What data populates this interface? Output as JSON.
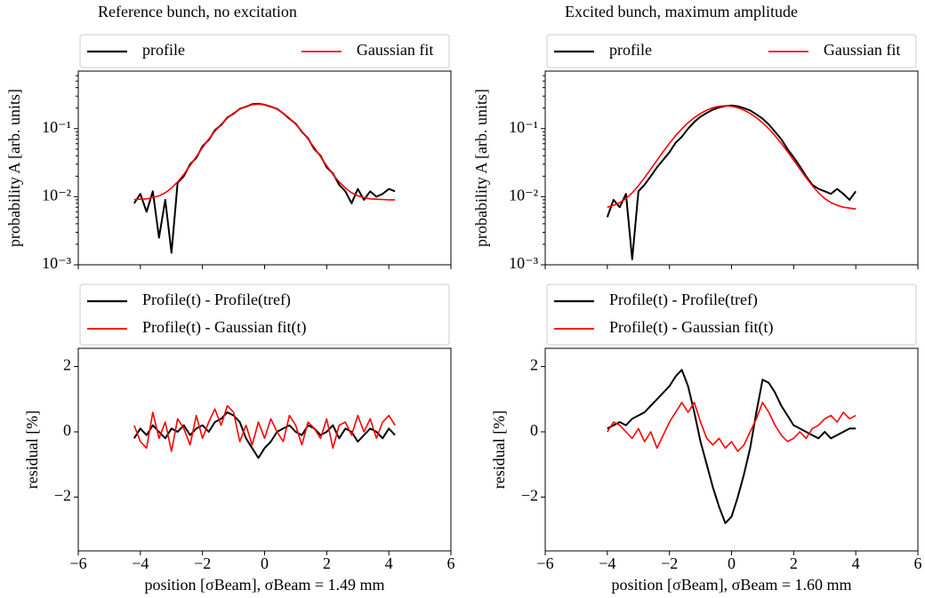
{
  "chart_data": [
    {
      "type": "line",
      "title": "Reference bunch, no excitation",
      "ylabel": "probability A [arb. units]",
      "log_y": true,
      "legend_columns": 2,
      "x": [
        -4.2,
        -4.0,
        -3.8,
        -3.6,
        -3.4,
        -3.2,
        -3.0,
        -2.8,
        -2.6,
        -2.4,
        -2.2,
        -2.0,
        -1.8,
        -1.6,
        -1.4,
        -1.2,
        -1.0,
        -0.8,
        -0.6,
        -0.4,
        -0.2,
        0.0,
        0.2,
        0.4,
        0.6,
        0.8,
        1.0,
        1.2,
        1.4,
        1.6,
        1.8,
        2.0,
        2.2,
        2.4,
        2.6,
        2.8,
        3.0,
        3.2,
        3.4,
        3.6,
        3.8,
        4.0,
        4.2
      ],
      "series": [
        {
          "name": "profile",
          "color": "#000000",
          "values": [
            0.008,
            0.011,
            0.006,
            0.012,
            0.0025,
            0.009,
            0.0015,
            0.016,
            0.02,
            0.03,
            0.037,
            0.055,
            0.068,
            0.095,
            0.113,
            0.145,
            0.166,
            0.195,
            0.21,
            0.228,
            0.232,
            0.224,
            0.21,
            0.195,
            0.168,
            0.14,
            0.118,
            0.09,
            0.072,
            0.05,
            0.04,
            0.027,
            0.022,
            0.015,
            0.012,
            0.008,
            0.013,
            0.009,
            0.012,
            0.01,
            0.011,
            0.013,
            0.012
          ]
        },
        {
          "name": "Gaussian fit",
          "color": "#ff0000",
          "values": [
            0.0091,
            0.0092,
            0.0093,
            0.0097,
            0.0103,
            0.0114,
            0.0134,
            0.0165,
            0.0213,
            0.0286,
            0.0388,
            0.0525,
            0.0702,
            0.0916,
            0.116,
            0.1425,
            0.169,
            0.193,
            0.212,
            0.225,
            0.229,
            0.225,
            0.212,
            0.193,
            0.169,
            0.1425,
            0.116,
            0.0916,
            0.0702,
            0.0525,
            0.0388,
            0.0286,
            0.0213,
            0.0165,
            0.0134,
            0.0114,
            0.0103,
            0.0097,
            0.0093,
            0.0092,
            0.0091,
            0.009,
            0.009
          ]
        }
      ],
      "xlim": [
        -6,
        6
      ],
      "xticks": [
        -6,
        -4,
        -2,
        0,
        2,
        4,
        6
      ],
      "ylim": [
        0.001,
        0.7
      ],
      "yticks": [
        {
          "value": 0.001,
          "label": "10⁻³"
        },
        {
          "value": 0.01,
          "label": "10⁻²"
        },
        {
          "value": 0.1,
          "label": "10⁻¹"
        }
      ]
    },
    {
      "type": "line",
      "title": "Excited bunch, maximum amplitude",
      "ylabel": "probability A [arb. units]",
      "log_y": true,
      "legend_columns": 2,
      "x": [
        -4.0,
        -3.8,
        -3.6,
        -3.4,
        -3.2,
        -3.0,
        -2.8,
        -2.6,
        -2.4,
        -2.2,
        -2.0,
        -1.8,
        -1.6,
        -1.4,
        -1.2,
        -1.0,
        -0.8,
        -0.6,
        -0.4,
        -0.2,
        0.0,
        0.2,
        0.4,
        0.6,
        0.8,
        1.0,
        1.2,
        1.4,
        1.6,
        1.8,
        2.0,
        2.2,
        2.4,
        2.6,
        2.8,
        3.0,
        3.2,
        3.4,
        3.6,
        3.8,
        4.0
      ],
      "series": [
        {
          "name": "profile",
          "color": "#000000",
          "values": [
            0.005,
            0.009,
            0.007,
            0.011,
            0.0012,
            0.012,
            0.015,
            0.02,
            0.027,
            0.035,
            0.045,
            0.062,
            0.076,
            0.1,
            0.125,
            0.15,
            0.17,
            0.19,
            0.205,
            0.215,
            0.218,
            0.213,
            0.2,
            0.185,
            0.162,
            0.14,
            0.115,
            0.09,
            0.07,
            0.05,
            0.038,
            0.028,
            0.02,
            0.015,
            0.013,
            0.012,
            0.011,
            0.013,
            0.011,
            0.009,
            0.012
          ]
        },
        {
          "name": "Gaussian fit",
          "color": "#ff0000",
          "values": [
            0.007,
            0.0075,
            0.0082,
            0.0094,
            0.0114,
            0.0145,
            0.019,
            0.0255,
            0.0344,
            0.0462,
            0.0609,
            0.0787,
            0.0993,
            0.122,
            0.145,
            0.167,
            0.187,
            0.203,
            0.213,
            0.216,
            0.213,
            0.203,
            0.187,
            0.167,
            0.145,
            0.122,
            0.0993,
            0.0787,
            0.0609,
            0.0462,
            0.0344,
            0.0255,
            0.019,
            0.0145,
            0.0114,
            0.0094,
            0.0082,
            0.0075,
            0.007,
            0.0068,
            0.0066
          ]
        }
      ],
      "xlim": [
        -6,
        6
      ],
      "xticks": [
        -6,
        -4,
        -2,
        0,
        2,
        4,
        6
      ],
      "ylim": [
        0.001,
        0.7
      ],
      "yticks": [
        {
          "value": 0.001,
          "label": "10⁻³"
        },
        {
          "value": 0.01,
          "label": "10⁻²"
        },
        {
          "value": 0.1,
          "label": "10⁻¹"
        }
      ]
    },
    {
      "type": "line",
      "ylabel": "residual [%]",
      "xlabel": "position [σBeam], σBeam = 1.49 mm",
      "log_y": false,
      "legend_columns": 1,
      "x": [
        -4.2,
        -4.0,
        -3.8,
        -3.6,
        -3.4,
        -3.2,
        -3.0,
        -2.8,
        -2.6,
        -2.4,
        -2.2,
        -2.0,
        -1.8,
        -1.6,
        -1.4,
        -1.2,
        -1.0,
        -0.8,
        -0.6,
        -0.4,
        -0.2,
        0.0,
        0.2,
        0.4,
        0.6,
        0.8,
        1.0,
        1.2,
        1.4,
        1.6,
        1.8,
        2.0,
        2.2,
        2.4,
        2.6,
        2.8,
        3.0,
        3.2,
        3.4,
        3.6,
        3.8,
        4.0,
        4.2
      ],
      "series": [
        {
          "name": "Profile(t) - Profile(tref)",
          "color": "#000000",
          "values": [
            -0.2,
            0.1,
            -0.1,
            0.2,
            0,
            -0.2,
            0.1,
            0,
            0.2,
            -0.1,
            0.1,
            0.2,
            0,
            0.3,
            0.4,
            0.6,
            0.5,
            0.3,
            -0.2,
            -0.5,
            -0.8,
            -0.5,
            -0.3,
            0,
            0.1,
            0.2,
            0,
            -0.1,
            0.2,
            0.1,
            -0.1,
            0,
            0.2,
            -0.2,
            0.1,
            0,
            -0.3,
            -0.1,
            0.1,
            0,
            -0.2,
            0.1,
            -0.1
          ]
        },
        {
          "name": "Profile(t) - Gaussian fit(t)",
          "color": "#ff0000",
          "values": [
            0.2,
            -0.3,
            -0.5,
            0.6,
            -0.2,
            0.3,
            -0.6,
            0.4,
            0.1,
            -0.4,
            0.5,
            -0.2,
            0.3,
            0.7,
            0.2,
            0.8,
            0.6,
            -0.3,
            0.2,
            -0.4,
            0.3,
            -0.2,
            0.4,
            0,
            -0.3,
            0.5,
            0.2,
            -0.4,
            0.3,
            0.1,
            -0.2,
            0.4,
            -0.5,
            0.2,
            0.3,
            -0.1,
            0.5,
            0,
            0.4,
            -0.2,
            0.3,
            0.5,
            0.2
          ]
        }
      ],
      "xlim": [
        -6,
        6
      ],
      "xticks": [
        {
          "value": -6,
          "label": "−6"
        },
        {
          "value": -4,
          "label": "−4"
        },
        {
          "value": -2,
          "label": "−2"
        },
        0,
        2,
        4,
        6
      ],
      "ylim": [
        -3.65,
        2.56
      ],
      "yticks": [
        {
          "value": -2,
          "label": "−2"
        },
        0,
        2
      ]
    },
    {
      "type": "line",
      "ylabel": "residual [%]",
      "xlabel": "position [σBeam], σBeam = 1.60 mm",
      "log_y": false,
      "legend_columns": 1,
      "x": [
        -4.0,
        -3.8,
        -3.6,
        -3.4,
        -3.2,
        -3.0,
        -2.8,
        -2.6,
        -2.4,
        -2.2,
        -2.0,
        -1.8,
        -1.6,
        -1.4,
        -1.2,
        -1.0,
        -0.8,
        -0.6,
        -0.4,
        -0.2,
        0.0,
        0.2,
        0.4,
        0.6,
        0.8,
        1.0,
        1.2,
        1.4,
        1.6,
        1.8,
        2.0,
        2.2,
        2.4,
        2.6,
        2.8,
        3.0,
        3.2,
        3.4,
        3.6,
        3.8,
        4.0
      ],
      "series": [
        {
          "name": "Profile(t) - Profile(tref)",
          "color": "#000000",
          "values": [
            0.1,
            0.2,
            0.3,
            0.2,
            0.4,
            0.5,
            0.6,
            0.8,
            1.0,
            1.2,
            1.4,
            1.7,
            1.9,
            1.4,
            0.6,
            -0.3,
            -1.0,
            -1.7,
            -2.3,
            -2.8,
            -2.6,
            -2.0,
            -1.3,
            -0.5,
            0.6,
            1.6,
            1.5,
            1.2,
            0.8,
            0.5,
            0.2,
            0.1,
            0,
            -0.1,
            -0.2,
            0,
            -0.2,
            -0.1,
            0,
            0.1,
            0.1
          ]
        },
        {
          "name": "Profile(t) - Gaussian fit(t)",
          "color": "#ff0000",
          "values": [
            0,
            0.3,
            0.2,
            0,
            -0.2,
            0.1,
            -0.3,
            0,
            -0.5,
            -0.1,
            0.3,
            0.6,
            0.9,
            0.6,
            0.9,
            0.3,
            -0.2,
            -0.4,
            -0.2,
            -0.5,
            -0.3,
            -0.6,
            -0.4,
            0,
            0.4,
            0.9,
            0.6,
            0.2,
            -0.1,
            -0.3,
            -0.2,
            0,
            -0.2,
            0.1,
            0.2,
            0.4,
            0.5,
            0.3,
            0.6,
            0.4,
            0.5
          ]
        }
      ],
      "xlim": [
        -6,
        6
      ],
      "xticks": [
        {
          "value": -6,
          "label": "−6"
        },
        {
          "value": -4,
          "label": "−4"
        },
        {
          "value": -2,
          "label": "−2"
        },
        0,
        2,
        4,
        6
      ],
      "ylim": [
        -3.65,
        2.56
      ],
      "yticks": [
        {
          "value": -2,
          "label": "−2"
        },
        0,
        2
      ]
    }
  ]
}
